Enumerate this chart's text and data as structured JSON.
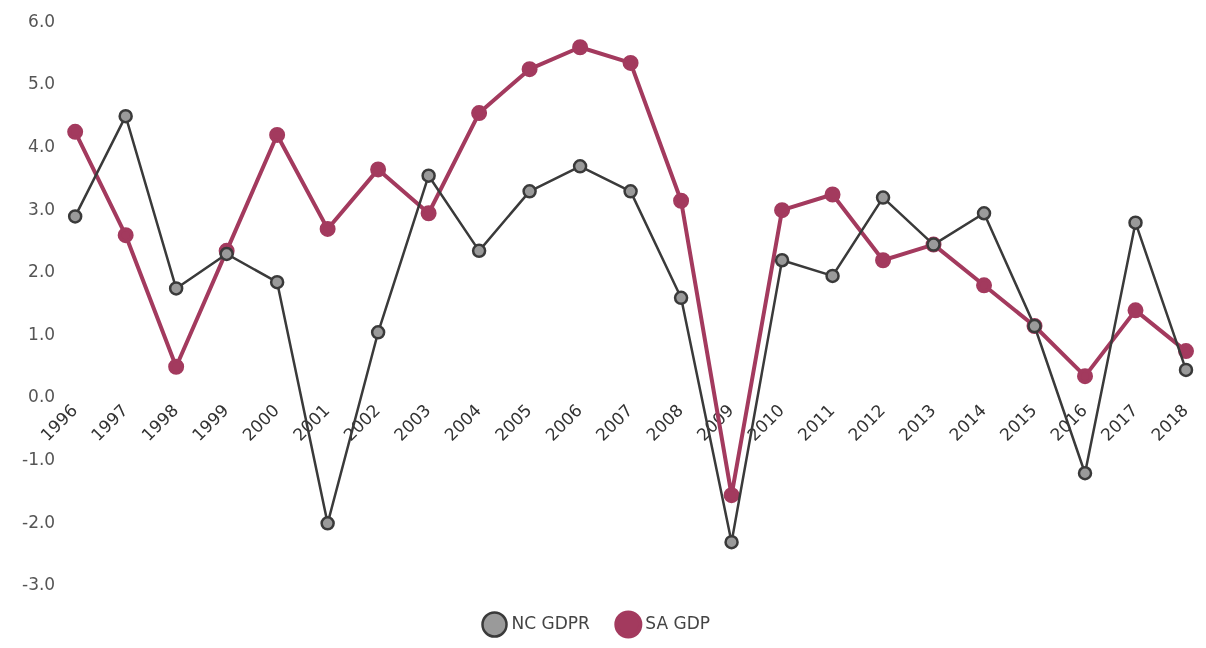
{
  "chart_data": {
    "type": "line",
    "categories": [
      "1996",
      "1997",
      "1998",
      "1999",
      "2000",
      "2001",
      "2002",
      "2003",
      "2004",
      "2005",
      "2006",
      "2007",
      "2008",
      "2009",
      "2010",
      "2011",
      "2012",
      "2013",
      "2014",
      "2015",
      "2016",
      "2017",
      "2018"
    ],
    "series": [
      {
        "name": "NC GDPR",
        "color": "#3a3a3a",
        "values": [
          2.9,
          4.5,
          1.75,
          2.3,
          1.85,
          -2.0,
          1.05,
          3.55,
          2.35,
          3.3,
          3.7,
          3.3,
          1.6,
          -2.3,
          2.2,
          1.95,
          3.2,
          2.45,
          2.95,
          1.15,
          -1.2,
          2.8,
          0.45
        ]
      },
      {
        "name": "SA GDP",
        "color": "#a33a5e",
        "values": [
          4.25,
          2.6,
          0.5,
          2.35,
          4.2,
          2.7,
          3.65,
          2.95,
          4.55,
          5.25,
          5.6,
          5.35,
          3.15,
          -1.55,
          3.0,
          3.25,
          2.2,
          2.45,
          1.8,
          1.15,
          0.35,
          1.4,
          0.75
        ]
      }
    ],
    "ylim": [
      -3,
      6
    ],
    "yticks": [
      {
        "value": -3,
        "label": "-3.0"
      },
      {
        "value": -2,
        "label": "-2.0"
      },
      {
        "value": -1,
        "label": "-1.0"
      },
      {
        "value": 0,
        "label": "0.0"
      },
      {
        "value": 1,
        "label": "1.0"
      },
      {
        "value": 2,
        "label": "2.0"
      },
      {
        "value": 3,
        "label": "3.0"
      },
      {
        "value": 4,
        "label": "4.0"
      },
      {
        "value": 5,
        "label": "5.0"
      },
      {
        "value": 6,
        "label": "6.0"
      }
    ],
    "grid": false,
    "legend": "bottom",
    "marker": "circle",
    "line_style": "solid"
  }
}
